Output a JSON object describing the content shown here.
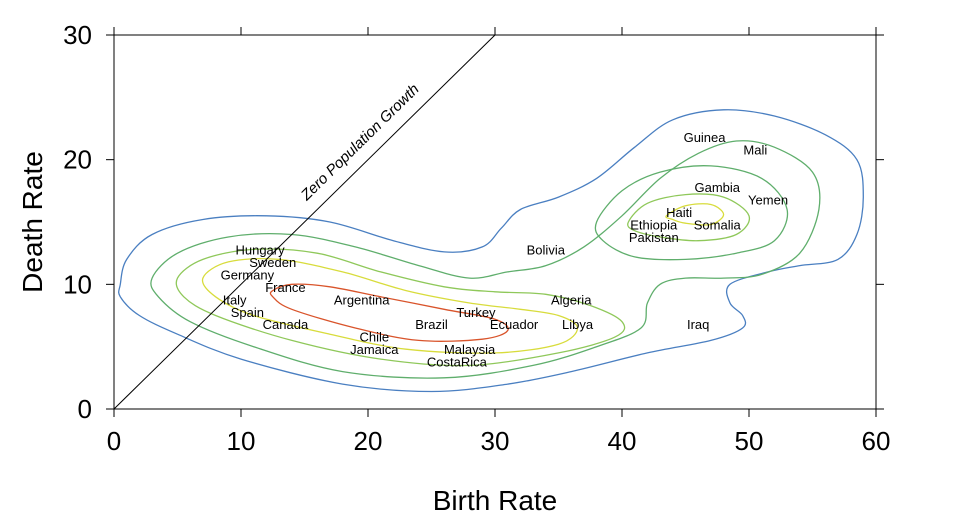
{
  "chart_data": {
    "type": "scatter",
    "xlabel": "Birth Rate",
    "ylabel": "Death Rate",
    "xlim": [
      0,
      60
    ],
    "ylim": [
      0,
      30
    ],
    "xticks": [
      0,
      10,
      20,
      30,
      40,
      50,
      60
    ],
    "xtick_labels": [
      "0",
      "10",
      "20",
      "30",
      "40",
      "50",
      "60"
    ],
    "yticks": [
      0,
      10,
      20,
      30
    ],
    "ytick_labels": [
      "0",
      "10",
      "20",
      "30"
    ],
    "grid": false,
    "reference_line": {
      "label": "Zero Population Growth",
      "points": [
        [
          0,
          0
        ],
        [
          30,
          30
        ]
      ]
    },
    "contour_colors": [
      "#4a7fc1",
      "#5fae6c",
      "#8fc85a",
      "#d8dc3c",
      "#d9542b"
    ],
    "contours": [
      {
        "color": "#4a7fc1",
        "points": [
          [
            0.5,
            10
          ],
          [
            1,
            12
          ],
          [
            3,
            14
          ],
          [
            7,
            15.2
          ],
          [
            12,
            15.5
          ],
          [
            17,
            15
          ],
          [
            22,
            13.5
          ],
          [
            26,
            12.6
          ],
          [
            29,
            13
          ],
          [
            30.5,
            14.5
          ],
          [
            32,
            16
          ],
          [
            35,
            17
          ],
          [
            38,
            18.5
          ],
          [
            41,
            21
          ],
          [
            44,
            23.2
          ],
          [
            48,
            24
          ],
          [
            52,
            23.5
          ],
          [
            56,
            22
          ],
          [
            58.5,
            20
          ],
          [
            59,
            17
          ],
          [
            58.5,
            14
          ],
          [
            57,
            12
          ],
          [
            54,
            11.5
          ],
          [
            51.5,
            11
          ],
          [
            48.5,
            10
          ],
          [
            48.5,
            8.5
          ],
          [
            49.5,
            7.5
          ],
          [
            49.5,
            6.5
          ],
          [
            47,
            5.5
          ],
          [
            42,
            4.5
          ],
          [
            36,
            3
          ],
          [
            31,
            2
          ],
          [
            25,
            1.4
          ],
          [
            18,
            2
          ],
          [
            10,
            4
          ],
          [
            5,
            6
          ],
          [
            2,
            7.5
          ],
          [
            0.5,
            9
          ]
        ]
      },
      {
        "color": "#5fae6c",
        "points": [
          [
            3,
            10.5
          ],
          [
            5,
            12.5
          ],
          [
            9,
            13.8
          ],
          [
            14,
            14
          ],
          [
            19,
            13
          ],
          [
            24,
            11.5
          ],
          [
            28,
            10.5
          ],
          [
            31,
            11
          ],
          [
            34,
            11.5
          ],
          [
            37,
            13
          ],
          [
            40,
            15.5
          ],
          [
            43,
            18.5
          ],
          [
            46,
            20.5
          ],
          [
            49,
            21.5
          ],
          [
            52,
            21
          ],
          [
            55,
            19
          ],
          [
            55.5,
            16
          ],
          [
            54,
            12.5
          ],
          [
            51,
            10.8
          ],
          [
            48,
            10.5
          ],
          [
            45,
            10.5
          ],
          [
            43,
            10
          ],
          [
            42,
            8.5
          ],
          [
            41.5,
            6.5
          ],
          [
            38,
            5
          ],
          [
            33,
            3.5
          ],
          [
            26,
            2.5
          ],
          [
            18,
            3
          ],
          [
            11,
            5
          ],
          [
            6,
            7
          ],
          [
            3.5,
            9
          ]
        ]
      },
      {
        "color": "#8fc85a",
        "points": [
          [
            5,
            10.5
          ],
          [
            7,
            12
          ],
          [
            11,
            12.8
          ],
          [
            16,
            12.5
          ],
          [
            21,
            11
          ],
          [
            26,
            9.8
          ],
          [
            30,
            9.4
          ],
          [
            34,
            9.2
          ],
          [
            37.5,
            8.3
          ],
          [
            40,
            7
          ],
          [
            39.5,
            5.8
          ],
          [
            35,
            4.5
          ],
          [
            28,
            3.5
          ],
          [
            21,
            4
          ],
          [
            14,
            5.5
          ],
          [
            8,
            7.5
          ],
          [
            5.5,
            9
          ]
        ]
      },
      {
        "color": "#d8dc3c",
        "points": [
          [
            7,
            10.5
          ],
          [
            9,
            11.8
          ],
          [
            13,
            12
          ],
          [
            18,
            11
          ],
          [
            23,
            9.5
          ],
          [
            28,
            8.5
          ],
          [
            32,
            8
          ],
          [
            35,
            7.5
          ],
          [
            36.5,
            6.5
          ],
          [
            35,
            5.2
          ],
          [
            30,
            4.5
          ],
          [
            23,
            4.8
          ],
          [
            17,
            6
          ],
          [
            11,
            7.5
          ],
          [
            8,
            9
          ]
        ]
      },
      {
        "color": "#d9542b",
        "points": [
          [
            12.5,
            9.5
          ],
          [
            14,
            10
          ],
          [
            17,
            9.8
          ],
          [
            21,
            9
          ],
          [
            26,
            8
          ],
          [
            30,
            7.2
          ],
          [
            31,
            6.3
          ],
          [
            29,
            5.6
          ],
          [
            24,
            5.5
          ],
          [
            19,
            6.5
          ],
          [
            14,
            8
          ],
          [
            12.5,
            9
          ]
        ]
      },
      {
        "color": "#5fae6c",
        "points": [
          [
            38,
            15
          ],
          [
            40,
            17.5
          ],
          [
            43,
            19
          ],
          [
            47,
            19.5
          ],
          [
            51,
            18.5
          ],
          [
            53,
            16
          ],
          [
            52,
            13.5
          ],
          [
            49,
            12.5
          ],
          [
            45,
            12
          ],
          [
            41,
            12.2
          ],
          [
            38.5,
            13.5
          ]
        ]
      },
      {
        "color": "#8fc85a",
        "points": [
          [
            40.5,
            15
          ],
          [
            42,
            16.5
          ],
          [
            45,
            17.2
          ],
          [
            48,
            17
          ],
          [
            50,
            15.5
          ],
          [
            49,
            14
          ],
          [
            46,
            13.5
          ],
          [
            43,
            13.8
          ],
          [
            41,
            14.3
          ]
        ]
      },
      {
        "color": "#d8dc3c",
        "points": [
          [
            43.5,
            15.5
          ],
          [
            45,
            16.3
          ],
          [
            47,
            16.4
          ],
          [
            48,
            15.6
          ],
          [
            47,
            14.8
          ],
          [
            45,
            14.9
          ],
          [
            44,
            15.2
          ]
        ]
      }
    ],
    "points": [
      {
        "label": "Guinea",
        "x": 46.5,
        "y": 21.8
      },
      {
        "label": "Mali",
        "x": 50.5,
        "y": 20.8
      },
      {
        "label": "Gambia",
        "x": 47.5,
        "y": 17.8
      },
      {
        "label": "Yemen",
        "x": 51.5,
        "y": 16.8
      },
      {
        "label": "Haiti",
        "x": 44.5,
        "y": 15.8
      },
      {
        "label": "Ethiopia",
        "x": 42.5,
        "y": 14.8
      },
      {
        "label": "Somalia",
        "x": 47.5,
        "y": 14.8
      },
      {
        "label": "Pakistan",
        "x": 42.5,
        "y": 13.8
      },
      {
        "label": "Bolivia",
        "x": 34,
        "y": 12.8
      },
      {
        "label": "Hungary",
        "x": 11.5,
        "y": 12.8
      },
      {
        "label": "Sweden",
        "x": 12.5,
        "y": 11.8
      },
      {
        "label": "Germany",
        "x": 10.5,
        "y": 10.8
      },
      {
        "label": "France",
        "x": 13.5,
        "y": 9.8
      },
      {
        "label": "Italy",
        "x": 9.5,
        "y": 8.8
      },
      {
        "label": "Argentina",
        "x": 19.5,
        "y": 8.8
      },
      {
        "label": "Algeria",
        "x": 36,
        "y": 8.8
      },
      {
        "label": "Spain",
        "x": 10.5,
        "y": 7.8
      },
      {
        "label": "Turkey",
        "x": 28.5,
        "y": 7.8
      },
      {
        "label": "Canada",
        "x": 13.5,
        "y": 6.8
      },
      {
        "label": "Brazil",
        "x": 25,
        "y": 6.8
      },
      {
        "label": "Ecuador",
        "x": 31.5,
        "y": 6.8
      },
      {
        "label": "Libya",
        "x": 36.5,
        "y": 6.8
      },
      {
        "label": "Iraq",
        "x": 46,
        "y": 6.8
      },
      {
        "label": "Chile",
        "x": 20.5,
        "y": 5.8
      },
      {
        "label": "Jamaica",
        "x": 20.5,
        "y": 4.8
      },
      {
        "label": "Malaysia",
        "x": 28,
        "y": 4.8
      },
      {
        "label": "CostaRica",
        "x": 27,
        "y": 3.8
      }
    ]
  }
}
